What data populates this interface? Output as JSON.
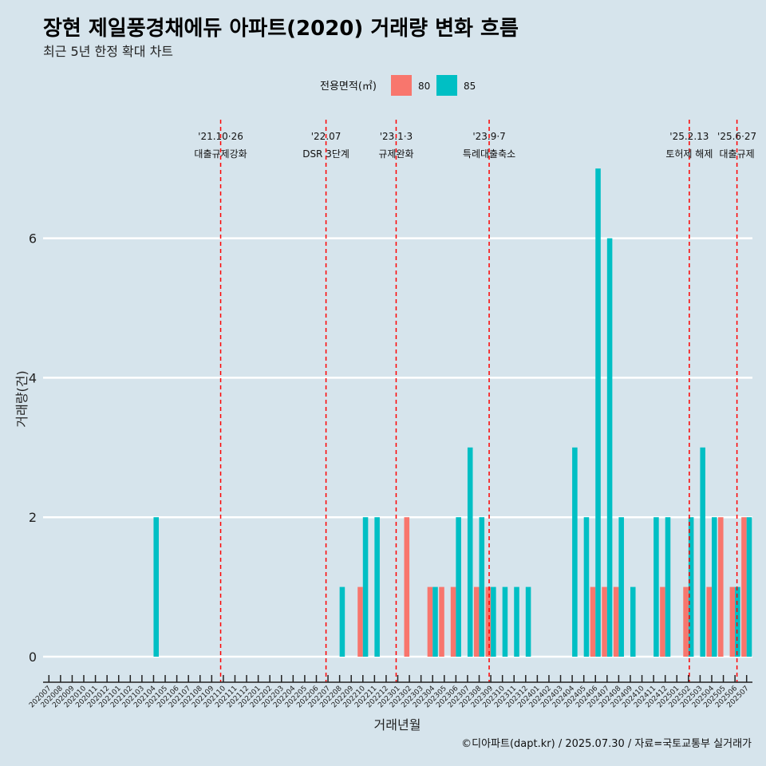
{
  "title": "장현 제일풍경채에듀 아파트(2020) 거래량 변화 흐름",
  "subtitle": "최근 5년 한정 확대 차트",
  "caption": "©디아파트(dapt.kr) / 2025.07.30 / 자료=국토교통부 실거래가",
  "legend": {
    "title": "전용면적(㎡)",
    "position": "top",
    "items": [
      {
        "label": "80",
        "color": "#f8766d"
      },
      {
        "label": "85",
        "color": "#00bfc4"
      }
    ]
  },
  "chart_data": {
    "type": "bar",
    "xlabel": "거래년월",
    "ylabel": "거래량(건)",
    "ylim": [
      0,
      7
    ],
    "yticks": [
      0,
      2,
      4,
      6
    ],
    "grid": true,
    "categories": [
      "202007",
      "202008",
      "202009",
      "202010",
      "202011",
      "202012",
      "202101",
      "202102",
      "202103",
      "202104",
      "202105",
      "202106",
      "202107",
      "202108",
      "202109",
      "202110",
      "202111",
      "202112",
      "202201",
      "202202",
      "202203",
      "202204",
      "202205",
      "202206",
      "202207",
      "202208",
      "202209",
      "202210",
      "202211",
      "202212",
      "202301",
      "202302",
      "202303",
      "202304",
      "202305",
      "202306",
      "202307",
      "202308",
      "202309",
      "202310",
      "202311",
      "202312",
      "202401",
      "202402",
      "202403",
      "202404",
      "202405",
      "202406",
      "202407",
      "202408",
      "202409",
      "202410",
      "202411",
      "202412",
      "202501",
      "202502",
      "202503",
      "202504",
      "202505",
      "202506",
      "202507"
    ],
    "series": [
      {
        "name": "80",
        "color": "#f8766d",
        "values": [
          0,
          0,
          0,
          0,
          0,
          0,
          0,
          0,
          0,
          0,
          0,
          0,
          0,
          0,
          0,
          0,
          0,
          0,
          0,
          0,
          0,
          0,
          0,
          0,
          0,
          0,
          0,
          1,
          0,
          0,
          0,
          2,
          0,
          1,
          1,
          1,
          0,
          1,
          1,
          0,
          0,
          0,
          0,
          0,
          0,
          0,
          0,
          1,
          1,
          1,
          0,
          0,
          0,
          1,
          0,
          1,
          0,
          1,
          2,
          1,
          2
        ]
      },
      {
        "name": "85",
        "color": "#00bfc4",
        "values": [
          0,
          0,
          0,
          0,
          0,
          0,
          0,
          0,
          0,
          2,
          0,
          0,
          0,
          0,
          0,
          0,
          0,
          0,
          0,
          0,
          0,
          0,
          0,
          0,
          0,
          1,
          0,
          2,
          2,
          0,
          0,
          0,
          0,
          1,
          0,
          2,
          3,
          2,
          1,
          1,
          1,
          1,
          0,
          0,
          0,
          3,
          2,
          7,
          6,
          2,
          1,
          0,
          2,
          2,
          0,
          2,
          3,
          2,
          0,
          1,
          2
        ]
      }
    ],
    "events": [
      {
        "date": "'21.10·26",
        "label": "대출규제강화",
        "position": 15.27
      },
      {
        "date": "'22.07",
        "label": "DSR 3단계",
        "position": 24.33
      },
      {
        "date": "'23.1·3",
        "label": "규제완화",
        "position": 30.36
      },
      {
        "date": "'23.9·7",
        "label": "특례대출축소",
        "position": 38.36
      },
      {
        "date": "'25.2.13",
        "label": "토허제 해제",
        "position": 55.57
      },
      {
        "date": "'25.6·27",
        "label": "대출규제",
        "position": 59.67
      }
    ]
  }
}
